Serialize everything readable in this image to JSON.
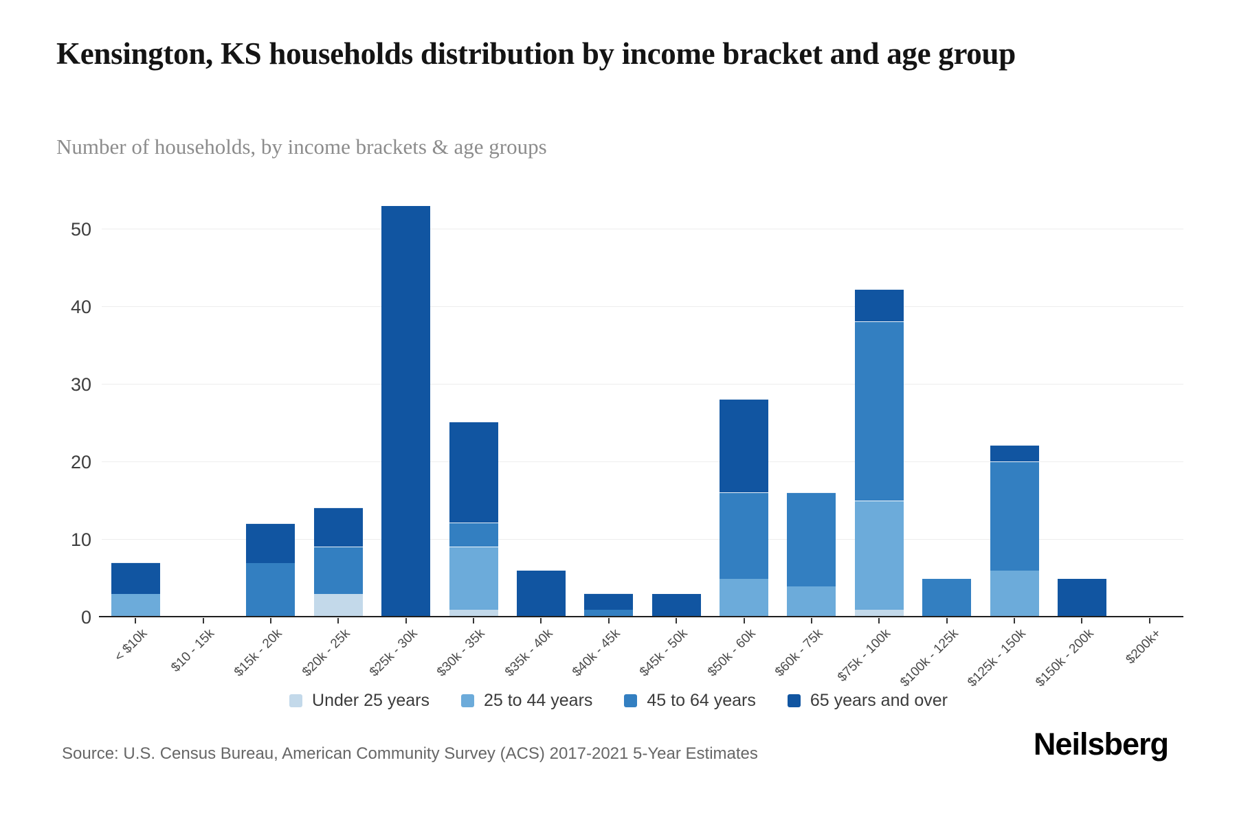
{
  "title": "Kensington, KS households distribution by income bracket and age group",
  "subtitle": "Number of households, by income brackets & age groups",
  "source": "Source: U.S. Census Bureau, American Community Survey (ACS) 2017-2021 5-Year Estimates",
  "logo": "Neilsberg",
  "chart_data": {
    "type": "bar",
    "stacked": true,
    "title": "Kensington, KS households distribution by income bracket and age group",
    "xlabel": "",
    "ylabel": "Number of households",
    "grid": true,
    "legend_position": "bottom",
    "y_ticks": [
      0,
      10,
      20,
      30,
      40,
      50
    ],
    "ylim": [
      0,
      53
    ],
    "categories": [
      "< $10k",
      "$10 - 15k",
      "$15k - 20k",
      "$20k - 25k",
      "$25k - 30k",
      "$30k - 35k",
      "$35k - 40k",
      "$40k - 45k",
      "$45k - 50k",
      "$50k - 60k",
      "$60k - 75k",
      "$75k - 100k",
      "$100k - 125k",
      "$125k - 150k",
      "$150k - 200k",
      "$200k+"
    ],
    "series": [
      {
        "name": "Under 25 years",
        "color": "#c3d9ea",
        "values": [
          0,
          0,
          0,
          3,
          0,
          1,
          0,
          0,
          0,
          0,
          0,
          1,
          0,
          0,
          0,
          0
        ]
      },
      {
        "name": "25 to 44 years",
        "color": "#6cabda",
        "values": [
          3,
          0,
          0,
          0,
          0,
          8,
          0,
          0,
          0,
          5,
          4,
          14,
          0,
          6,
          0,
          0
        ]
      },
      {
        "name": "45 to 64 years",
        "color": "#337fc1",
        "values": [
          0,
          0,
          7,
          6,
          0,
          3,
          0,
          1,
          0,
          11,
          12,
          23,
          5,
          14,
          0,
          0
        ]
      },
      {
        "name": "65 years and over",
        "color": "#1155a1",
        "values": [
          4,
          0,
          5,
          5,
          53,
          13,
          6,
          2,
          3,
          12,
          0,
          4,
          0,
          2,
          5,
          0
        ]
      }
    ],
    "totals": [
      7,
      0,
      12,
      14,
      53,
      25,
      6,
      3,
      3,
      28,
      16,
      42,
      5,
      22,
      5,
      0
    ]
  }
}
